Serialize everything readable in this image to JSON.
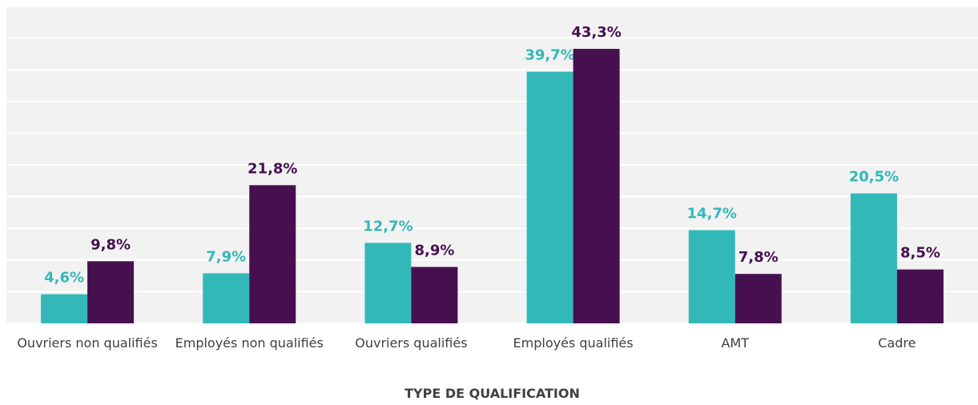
{
  "chart_data": {
    "type": "bar",
    "x_label": "TYPE DE QUALIFICATION",
    "categories": [
      "Ouvriers non qualifiés",
      "Employés non qualifiés",
      "Ouvriers qualifiés",
      "Employés qualifiés",
      "AMT",
      "Cadre"
    ],
    "series": [
      {
        "color": "#33b8b8",
        "values": [
          4.6,
          7.9,
          12.7,
          39.7,
          14.7,
          20.5
        ],
        "value_labels": [
          "4,6%",
          "7,9%",
          "12,7%",
          "39,7%",
          "14,7%",
          "20,5%"
        ]
      },
      {
        "color": "#46104f",
        "values": [
          9.8,
          21.8,
          8.9,
          43.3,
          7.8,
          8.5
        ],
        "value_labels": [
          "9,8%",
          "21,8%",
          "8,9%",
          "43,3%",
          "7,8%",
          "8,5%"
        ]
      }
    ],
    "ylim": [
      0,
      50
    ],
    "yticks": [
      0,
      5,
      10,
      15,
      20,
      25,
      30,
      35,
      40,
      45,
      50
    ],
    "grid": true
  }
}
